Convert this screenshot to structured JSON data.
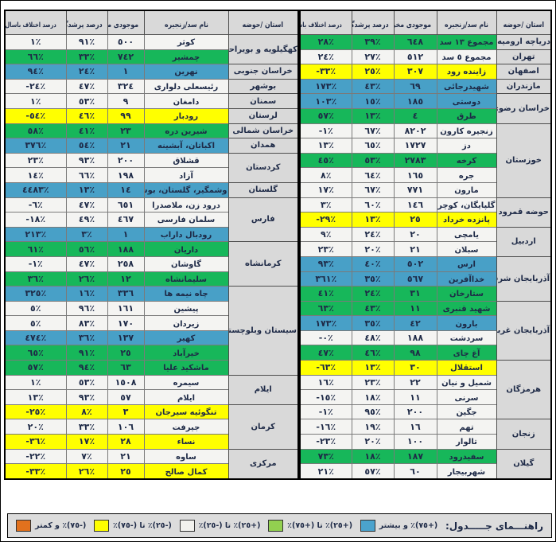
{
  "columns": [
    "استان /حوضه",
    "نام سد/زنجیره",
    "موجودی مخزن",
    "درصد پرشدگی",
    "درصد اختلاف باسال قبل"
  ],
  "colors": {
    "blue": "#48a0c7",
    "green": "#17b75a",
    "white": "#f4f4f2",
    "yellow": "#ffff00",
    "orange": "#e2711d",
    "header_gray": "#d9d9d9"
  },
  "legend": {
    "title": "راهنـــمای جـــــدول:",
    "items": [
      {
        "band": "blue",
        "swatch": "#4ba3cd",
        "label": "(+٧٥)٪ و بیشتر"
      },
      {
        "band": "green",
        "swatch": "#92d050",
        "label": "(+٢٥)٪ تا (+٧٥)٪"
      },
      {
        "band": "white",
        "swatch": "#f2f2ee",
        "label": "(+٢٥)٪ تا (-٢٥)٪"
      },
      {
        "band": "yellow",
        "swatch": "#ffff00",
        "label": "(-٢٥)٪ تا (-٧٥)٪"
      },
      {
        "band": "orange",
        "swatch": "#e2711d",
        "label": "(-٧٥)٪ و کمتر"
      }
    ]
  },
  "tables": {
    "right": {
      "groups": [
        {
          "province": "دریاچه ارومیه",
          "rows": [
            {
              "dam": "مجموع ١٣ سد",
              "storage": "٦٤٨",
              "fill": "٣٩٪",
              "diff": "٢٨٪",
              "band": "green"
            }
          ]
        },
        {
          "province": "تهران",
          "rows": [
            {
              "dam": "مجموع ٥ سد",
              "storage": "٥١٢",
              "fill": "٢٧٪",
              "diff": "٢٤٪",
              "band": "white"
            }
          ]
        },
        {
          "province": "اصفهان",
          "rows": [
            {
              "dam": "زاینده رود",
              "storage": "٣٠٧",
              "fill": "٢٥٪",
              "diff": "-٣٣٪",
              "band": "yellow"
            }
          ]
        },
        {
          "province": "مازندران",
          "rows": [
            {
              "dam": "شهیدرجائی",
              "storage": "٦٩",
              "fill": "٤٣٪",
              "diff": "١٧٣٪",
              "band": "blue"
            }
          ]
        },
        {
          "province": "خراسان رضوی",
          "rows": [
            {
              "dam": "دوستی",
              "storage": "١٨٥",
              "fill": "١٥٪",
              "diff": "١٠٣٪",
              "band": "blue"
            },
            {
              "dam": "طرق",
              "storage": "٤",
              "fill": "١٣٪",
              "diff": "٥٧٪",
              "band": "green"
            }
          ]
        },
        {
          "province": "خوزستان",
          "rows": [
            {
              "dam": "زنجیره کارون",
              "storage": "٨٢٠٢",
              "fill": "٦٧٪",
              "diff": "-١٪",
              "band": "white"
            },
            {
              "dam": "دز",
              "storage": "١٧٢٧",
              "fill": "٦٥٪",
              "diff": "١٣٪",
              "band": "white"
            },
            {
              "dam": "کرخه",
              "storage": "٢٧٨٣",
              "fill": "٥٣٪",
              "diff": "٤٥٪",
              "band": "green"
            },
            {
              "dam": "جره",
              "storage": "١٦٥",
              "fill": "٦٤٪",
              "diff": "٨٪",
              "band": "white"
            },
            {
              "dam": "مارون",
              "storage": "٧٧١",
              "fill": "٦٧٪",
              "diff": "١٧٪",
              "band": "white"
            }
          ]
        },
        {
          "province": "حوضه قمرود",
          "rows": [
            {
              "dam": "گلپایگان، کوچری",
              "storage": "١٤٦",
              "fill": "٦٠٪",
              "diff": "٣٪",
              "band": "white"
            },
            {
              "dam": "پانزده خرداد",
              "storage": "٢٥",
              "fill": "١٣٪",
              "diff": "-٢٩٪",
              "band": "yellow"
            }
          ]
        },
        {
          "province": "اردبیل",
          "rows": [
            {
              "dam": "یامچی",
              "storage": "٢٠",
              "fill": "٢٤٪",
              "diff": "٩٪",
              "band": "white"
            },
            {
              "dam": "سبلان",
              "storage": "٢١",
              "fill": "٢٠٪",
              "diff": "٢٣٪",
              "band": "white"
            }
          ]
        },
        {
          "province": "آذربایجان شرقی",
          "rows": [
            {
              "dam": "ارس",
              "storage": "٥٠٢",
              "fill": "٤٠٪",
              "diff": "٩٣٪",
              "band": "blue"
            },
            {
              "dam": "خداآفرین",
              "storage": "٥٦٧",
              "fill": "٣٥٪",
              "diff": "٣٦١٪",
              "band": "blue"
            },
            {
              "dam": "ستارخان",
              "storage": "٣١",
              "fill": "٢٤٪",
              "diff": "٤١٪",
              "band": "green"
            }
          ]
        },
        {
          "province": "آذربایجان غربی",
          "rows": [
            {
              "dam": "شهید قنبری",
              "storage": "١١",
              "fill": "٤٣٪",
              "diff": "٦٣٪",
              "band": "green"
            },
            {
              "dam": "بارون",
              "storage": "٤٢",
              "fill": "٣٥٪",
              "diff": "١٧٣٪",
              "band": "blue"
            },
            {
              "dam": "سردشت",
              "storage": "١٨٨",
              "fill": "٤٨٪",
              "diff": "-٠٪",
              "band": "white"
            },
            {
              "dam": "آغ چای",
              "storage": "٩٨",
              "fill": "٤٦٪",
              "diff": "٤٧٪",
              "band": "green"
            }
          ]
        },
        {
          "province": "هرمزگان",
          "rows": [
            {
              "dam": "استقلال",
              "storage": "٣٠",
              "fill": "١٣٪",
              "diff": "-٦٣٪",
              "band": "yellow"
            },
            {
              "dam": "شمیل و نیان",
              "storage": "٢٢",
              "fill": "٢٣٪",
              "diff": "١٦٪",
              "band": "white"
            },
            {
              "dam": "سرنی",
              "storage": "١١",
              "fill": "١٨٪",
              "diff": "-١٥٪",
              "band": "white"
            },
            {
              "dam": "جگین",
              "storage": "٢٠٠",
              "fill": "٩٥٪",
              "diff": "-١٪",
              "band": "white"
            }
          ]
        },
        {
          "province": "زنجان",
          "rows": [
            {
              "dam": "تهم",
              "storage": "١٦",
              "fill": "١٩٪",
              "diff": "-١٦٪",
              "band": "white"
            },
            {
              "dam": "تالوار",
              "storage": "١٠٠",
              "fill": "٢٠٪",
              "diff": "-٢٣٪",
              "band": "white"
            }
          ]
        },
        {
          "province": "گیلان",
          "rows": [
            {
              "dam": "سفیدرود",
              "storage": "١٨٧",
              "fill": "١٨٪",
              "diff": "٧٣٪",
              "band": "green"
            },
            {
              "dam": "شهربیجار",
              "storage": "٦٠",
              "fill": "٥٧٪",
              "diff": "٢١٪",
              "band": "white"
            }
          ]
        }
      ]
    },
    "left": {
      "groups": [
        {
          "province": "کهگیلویه و بویراحمد",
          "rows": [
            {
              "dam": "کوثر",
              "storage": "٥٠٠",
              "fill": "٩١٪",
              "diff": "١٪",
              "band": "white"
            },
            {
              "dam": "چمشیر",
              "storage": "٧٤٢",
              "fill": "٣٣٪",
              "diff": "٦٦٪",
              "band": "green"
            }
          ]
        },
        {
          "province": "خراسان جنوبی",
          "rows": [
            {
              "dam": "نهرین",
              "storage": "١",
              "fill": "٢٤٪",
              "diff": "٩٤٪",
              "band": "blue"
            }
          ]
        },
        {
          "province": "بوشهر",
          "rows": [
            {
              "dam": "رئیسعلی دلواری",
              "storage": "٣٢٤",
              "fill": "٤٧٪",
              "diff": "-٢٤٪",
              "band": "white"
            }
          ]
        },
        {
          "province": "سمنان",
          "rows": [
            {
              "dam": "دامغان",
              "storage": "٩",
              "fill": "٥٣٪",
              "diff": "١٪",
              "band": "white"
            }
          ]
        },
        {
          "province": "لرستان",
          "rows": [
            {
              "dam": "رودبار",
              "storage": "٩٩",
              "fill": "٤٦٪",
              "diff": "-٥٤٪",
              "band": "yellow"
            }
          ]
        },
        {
          "province": "خراسان شمالی",
          "rows": [
            {
              "dam": "شیرین دره",
              "storage": "٢٣",
              "fill": "٤١٪",
              "diff": "٥٨٪",
              "band": "green"
            }
          ]
        },
        {
          "province": "همدان",
          "rows": [
            {
              "dam": "اکباتان، آبشینه",
              "storage": "٢١",
              "fill": "٥٤٪",
              "diff": "٣٧٦٪",
              "band": "blue"
            }
          ]
        },
        {
          "province": "کردستان",
          "rows": [
            {
              "dam": "قشلاق",
              "storage": "٢٠٠",
              "fill": "٩٣٪",
              "diff": "٢٣٪",
              "band": "white"
            },
            {
              "dam": "آزاد",
              "storage": "١٩٨",
              "fill": "٦٦٪",
              "diff": "١٤٪",
              "band": "white"
            }
          ]
        },
        {
          "province": "گلستان",
          "rows": [
            {
              "dam": "وشمگیر، گلستان، بوستان",
              "storage": "١٤",
              "fill": "١٣٪",
              "diff": "٤٤٨٣٪",
              "band": "blue"
            }
          ]
        },
        {
          "province": "فارس",
          "rows": [
            {
              "dam": "درود زن، ملاصدرا",
              "storage": "٦٥١",
              "fill": "٤٧٪",
              "diff": "-٦٪",
              "band": "white"
            },
            {
              "dam": "سلمان فارسی",
              "storage": "٤٦٧",
              "fill": "٤٩٪",
              "diff": "-١٨٪",
              "band": "white"
            },
            {
              "dam": "رودبال داراب",
              "storage": "١",
              "fill": "٣٪",
              "diff": "٢١٣٪",
              "band": "blue"
            }
          ]
        },
        {
          "province": "کرمانشاه",
          "rows": [
            {
              "dam": "داریان",
              "storage": "١٨٨",
              "fill": "٥٦٪",
              "diff": "٦١٪",
              "band": "green"
            },
            {
              "dam": "گاوشان",
              "storage": "٢٥٨",
              "fill": "٤٧٪",
              "diff": "-١٪",
              "band": "white"
            },
            {
              "dam": "سلیمانشاه",
              "storage": "١٢",
              "fill": "٢٦٪",
              "diff": "٣٦٪",
              "band": "green"
            }
          ]
        },
        {
          "province": "سیستان وبلوچستان",
          "rows": [
            {
              "dam": "چاه نیمه ها",
              "storage": "٣٣٦",
              "fill": "١٦٪",
              "diff": "٣٢٥٪",
              "band": "blue"
            },
            {
              "dam": "پیشین",
              "storage": "١٦١",
              "fill": "٩٦٪",
              "diff": "٥٪",
              "band": "white"
            },
            {
              "dam": "زیردان",
              "storage": "١٧٠",
              "fill": "٨٣٪",
              "diff": "٥٪",
              "band": "white"
            },
            {
              "dam": "کهیر",
              "storage": "١٣٧",
              "fill": "٣٦٪",
              "diff": "٤٧٤٪",
              "band": "blue"
            },
            {
              "dam": "خیرآباد",
              "storage": "٢٥",
              "fill": "٩١٪",
              "diff": "٦٥٪",
              "band": "green"
            },
            {
              "dam": "ماشکید علیا",
              "storage": "٦٣",
              "fill": "٩٤٪",
              "diff": "٥٧٪",
              "band": "green"
            }
          ]
        },
        {
          "province": "ایلام",
          "rows": [
            {
              "dam": "سیمره",
              "storage": "١٥٠٨",
              "fill": "٥٣٪",
              "diff": "١٪",
              "band": "white"
            },
            {
              "dam": "ایلام",
              "storage": "٥٧",
              "fill": "٩٣٪",
              "diff": "١٣٪",
              "band": "white"
            }
          ]
        },
        {
          "province": "کرمان",
          "rows": [
            {
              "dam": "تنگوئیه سیرجان",
              "storage": "٣",
              "fill": "٨٪",
              "diff": "-٢٥٪",
              "band": "yellow"
            },
            {
              "dam": "جیرفت",
              "storage": "١٠٦",
              "fill": "٣٣٪",
              "diff": "٢٠٪",
              "band": "white"
            },
            {
              "dam": "نساء",
              "storage": "٢٨",
              "fill": "١٧٪",
              "diff": "-٣٦٪",
              "band": "yellow"
            }
          ]
        },
        {
          "province": "مرکزی",
          "rows": [
            {
              "dam": "ساوه",
              "storage": "٢١",
              "fill": "٧٪",
              "diff": "-٢٢٪",
              "band": "white"
            },
            {
              "dam": "کمال صالح",
              "storage": "٢٥",
              "fill": "٢٦٪",
              "diff": "-٣٣٪",
              "band": "yellow"
            }
          ]
        }
      ]
    }
  }
}
